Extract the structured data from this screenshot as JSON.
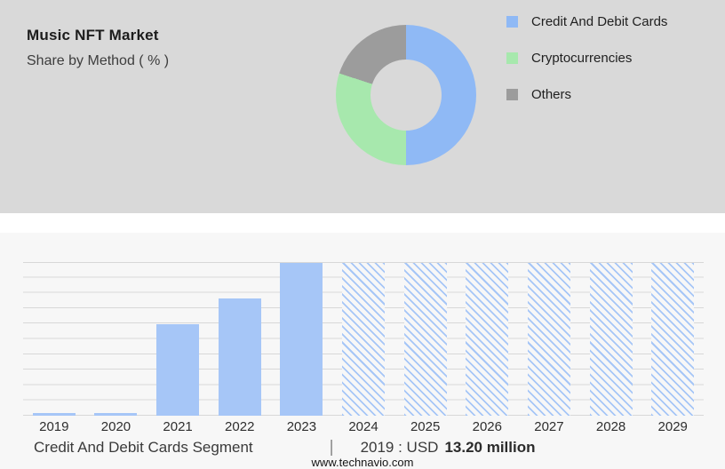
{
  "header": {
    "title": "Music NFT Market",
    "subtitle": "Share by Method ( % )"
  },
  "colors": {
    "panel_bg": "#d9d9d9",
    "page_bg": "#f7f7f7",
    "blue": "#8fb9f5",
    "green": "#a7e8ad",
    "gray": "#9c9c9c",
    "bar_blue": "#a6c6f7",
    "grid_line": "#d8d8d8"
  },
  "chart_data": [
    {
      "type": "pie",
      "donut": true,
      "title": "Share by Method ( % )",
      "labels": [
        "Credit And Debit Cards",
        "Cryptocurrencies",
        "Others"
      ],
      "values": [
        50,
        30,
        20
      ],
      "colors": [
        "#8fb9f5",
        "#a7e8ad",
        "#9c9c9c"
      ],
      "legend_position": "right"
    },
    {
      "type": "bar",
      "categories": [
        "2019",
        "2020",
        "2021",
        "2022",
        "2023",
        "2024",
        "2025",
        "2026",
        "2027",
        "2028",
        "2029"
      ],
      "values": [
        1.5,
        1.5,
        60,
        77,
        100,
        100,
        100,
        100,
        100,
        100,
        100
      ],
      "hatched": [
        false,
        false,
        false,
        false,
        false,
        true,
        true,
        true,
        true,
        true,
        true
      ],
      "ylim": [
        0,
        100
      ],
      "grid": true,
      "xlabel": "",
      "ylabel": ""
    }
  ],
  "caption": {
    "segment": "Credit And Debit Cards Segment",
    "separator": "|",
    "prefix": "2019 : USD",
    "value": "13.20 million"
  },
  "footer": {
    "url": "www.technavio.com"
  }
}
